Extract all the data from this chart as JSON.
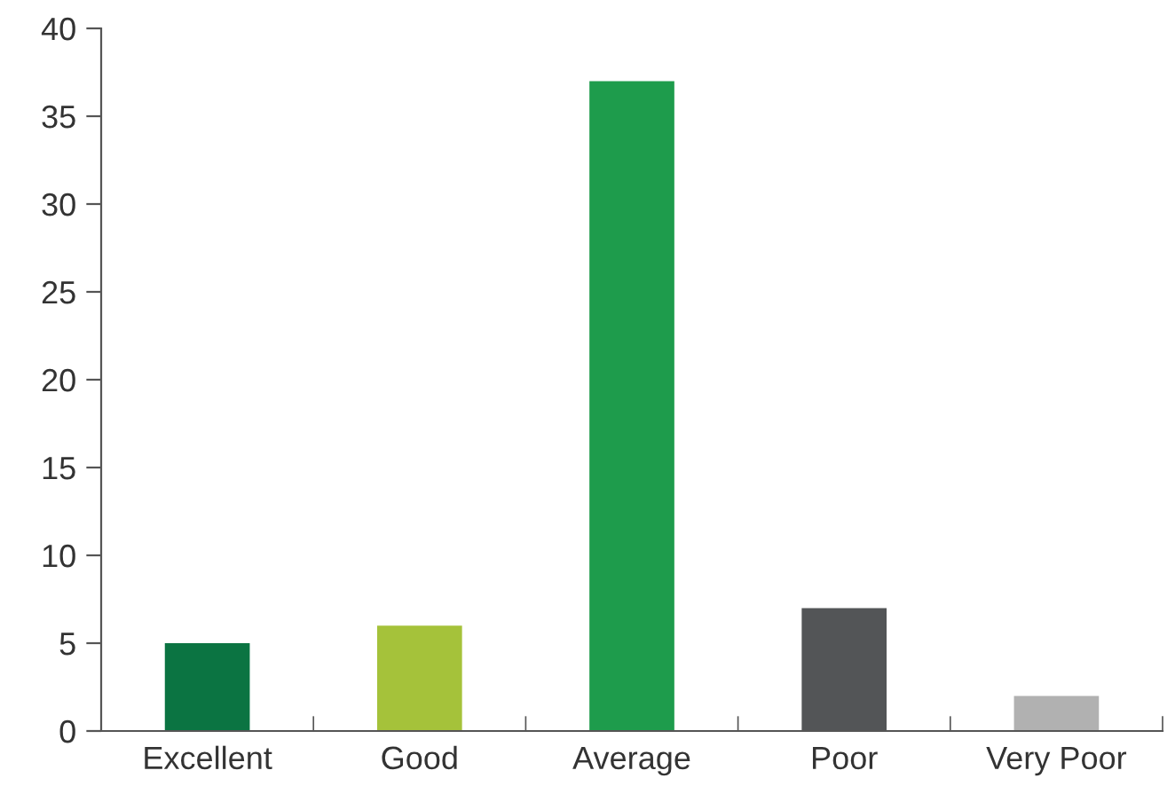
{
  "chart_data": {
    "type": "bar",
    "categories": [
      "Excellent",
      "Good",
      "Average",
      "Poor",
      "Very Poor"
    ],
    "values": [
      5,
      6,
      37,
      7,
      2
    ],
    "colors": [
      "#0b7442",
      "#a5c23a",
      "#1e9c4c",
      "#535557",
      "#b1b1b1"
    ],
    "ylim": [
      0,
      40
    ],
    "yticks": [
      0,
      5,
      10,
      15,
      20,
      25,
      30,
      35,
      40
    ],
    "grid": false,
    "legend": false
  }
}
